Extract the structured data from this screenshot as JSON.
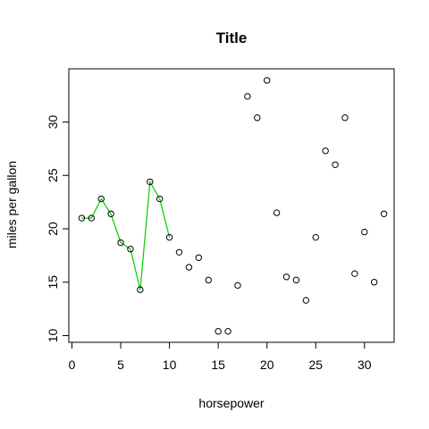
{
  "chart_data": {
    "type": "scatter",
    "title": "Title",
    "xlabel": "horsepower",
    "ylabel": "miles per gallon",
    "xlim": [
      0,
      32
    ],
    "ylim": [
      10,
      34
    ],
    "x_ticks": [
      0,
      5,
      10,
      15,
      20,
      25,
      30
    ],
    "y_ticks": [
      10,
      15,
      20,
      25,
      30
    ],
    "grid": false,
    "series": [
      {
        "type": "scatter",
        "marker": "open-circle",
        "color": "#000000",
        "x": [
          1,
          2,
          3,
          4,
          5,
          6,
          7,
          8,
          9,
          10,
          11,
          12,
          13,
          14,
          15,
          16,
          17,
          18,
          19,
          20,
          21,
          22,
          23,
          24,
          25,
          26,
          27,
          28,
          29,
          30,
          31,
          32
        ],
        "values": [
          21.0,
          21.0,
          22.8,
          21.4,
          18.7,
          18.1,
          14.3,
          24.4,
          22.8,
          19.2,
          17.8,
          16.4,
          17.3,
          15.2,
          10.4,
          10.4,
          14.7,
          32.4,
          30.4,
          33.9,
          21.5,
          15.5,
          15.2,
          13.3,
          19.2,
          27.3,
          26.0,
          30.4,
          15.8,
          19.7,
          15.0,
          21.4
        ]
      },
      {
        "type": "line",
        "color": "#00cc00",
        "x": [
          1,
          2,
          3,
          4,
          5,
          6,
          7,
          8,
          9,
          10
        ],
        "values": [
          21.0,
          21.0,
          22.8,
          21.4,
          18.7,
          18.1,
          14.3,
          24.4,
          22.8,
          19.2
        ]
      }
    ]
  }
}
